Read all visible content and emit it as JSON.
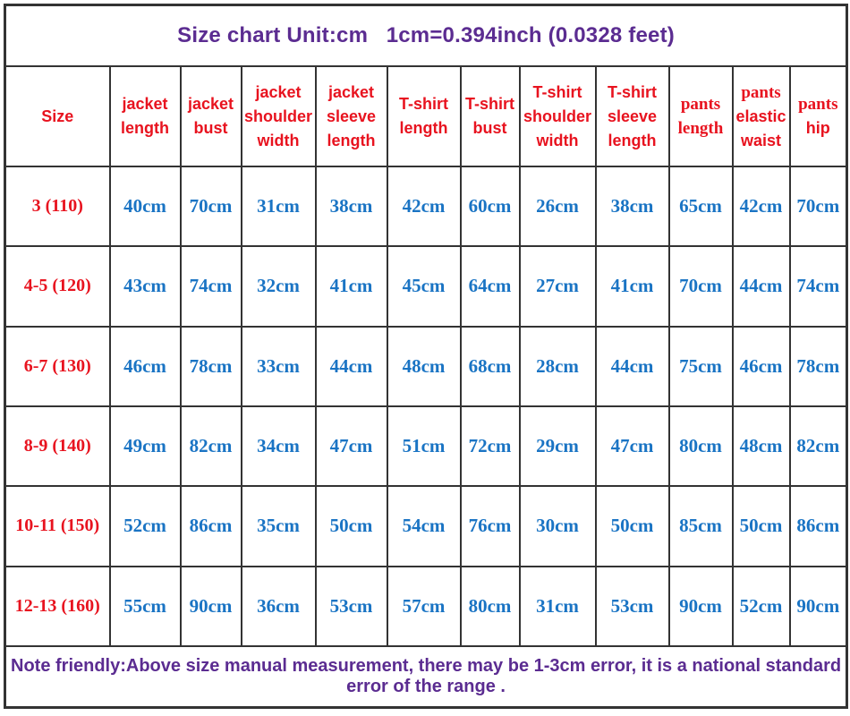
{
  "title": "Size chart Unit:cm   1cm=0.394inch (0.0328 feet)",
  "footer_note": "Note friendly:Above size manual measurement, there may be 1-3cm error, it is a national standard error of the range .",
  "colors": {
    "title_purple": "#5b2c91",
    "header_red": "#e8131f",
    "value_blue": "#1a74c4",
    "grid_border": "#333333",
    "background": "#ffffff"
  },
  "chart_data": {
    "type": "table",
    "title": "Size chart Unit:cm   1cm=0.394inch (0.0328 feet)",
    "unit_conversion": "1cm=0.394inch (0.0328 feet)",
    "column_labels": [
      "Size",
      "jacket length",
      "jacket bust",
      "jacket shoulder width",
      "jacket sleeve length",
      "T-shirt length",
      "T-shirt bust",
      "T-shirt shoulder width",
      "T-shirt sleeve length",
      "pants length",
      "pants elastic waist",
      "pants hip"
    ],
    "columns": [
      {
        "key": "size",
        "lines": [
          {
            "text": "Size",
            "font": "sans"
          }
        ]
      },
      {
        "key": "jacket-length",
        "lines": [
          {
            "text": "jacket",
            "font": "sans"
          },
          {
            "text": "length",
            "font": "sans"
          }
        ]
      },
      {
        "key": "jacket-bust",
        "lines": [
          {
            "text": "jacket",
            "font": "sans"
          },
          {
            "text": "bust",
            "font": "sans"
          }
        ]
      },
      {
        "key": "jacket-shoulder-width",
        "lines": [
          {
            "text": "jacket",
            "font": "sans"
          },
          {
            "text": "shoulder",
            "font": "sans"
          },
          {
            "text": "width",
            "font": "sans"
          }
        ]
      },
      {
        "key": "jacket-sleeve-length",
        "lines": [
          {
            "text": "jacket",
            "font": "sans"
          },
          {
            "text": "sleeve",
            "font": "sans"
          },
          {
            "text": "length",
            "font": "sans"
          }
        ]
      },
      {
        "key": "tshirt-length",
        "lines": [
          {
            "text": "T-shirt",
            "font": "sans"
          },
          {
            "text": "length",
            "font": "sans"
          }
        ]
      },
      {
        "key": "tshirt-bust",
        "lines": [
          {
            "text": "T-shirt",
            "font": "sans"
          },
          {
            "text": "bust",
            "font": "sans"
          }
        ]
      },
      {
        "key": "tshirt-shoulder-width",
        "lines": [
          {
            "text": "T-shirt",
            "font": "sans"
          },
          {
            "text": "shoulder",
            "font": "sans"
          },
          {
            "text": "width",
            "font": "sans"
          }
        ]
      },
      {
        "key": "tshirt-sleeve-length",
        "lines": [
          {
            "text": "T-shirt",
            "font": "sans"
          },
          {
            "text": "sleeve",
            "font": "sans"
          },
          {
            "text": "length",
            "font": "sans"
          }
        ]
      },
      {
        "key": "pants-length",
        "lines": [
          {
            "text": "pants",
            "font": "serif"
          },
          {
            "text": "length",
            "font": "serif"
          }
        ]
      },
      {
        "key": "pants-elastic-waist",
        "lines": [
          {
            "text": "pants",
            "font": "serif"
          },
          {
            "text": "elastic",
            "font": "sans"
          },
          {
            "text": "waist",
            "font": "sans"
          }
        ]
      },
      {
        "key": "pants-hip",
        "lines": [
          {
            "text": "pants",
            "font": "serif"
          },
          {
            "text": "hip",
            "font": "sans"
          }
        ]
      }
    ],
    "rows": [
      {
        "size": "3 (110)",
        "values": [
          "40cm",
          "70cm",
          "31cm",
          "38cm",
          "42cm",
          "60cm",
          "26cm",
          "38cm",
          "65cm",
          "42cm",
          "70cm"
        ]
      },
      {
        "size": "4-5 (120)",
        "values": [
          "43cm",
          "74cm",
          "32cm",
          "41cm",
          "45cm",
          "64cm",
          "27cm",
          "41cm",
          "70cm",
          "44cm",
          "74cm"
        ]
      },
      {
        "size": "6-7 (130)",
        "values": [
          "46cm",
          "78cm",
          "33cm",
          "44cm",
          "48cm",
          "68cm",
          "28cm",
          "44cm",
          "75cm",
          "46cm",
          "78cm"
        ]
      },
      {
        "size": "8-9 (140)",
        "values": [
          "49cm",
          "82cm",
          "34cm",
          "47cm",
          "51cm",
          "72cm",
          "29cm",
          "47cm",
          "80cm",
          "48cm",
          "82cm"
        ]
      },
      {
        "size": "10-11 (150)",
        "values": [
          "52cm",
          "86cm",
          "35cm",
          "50cm",
          "54cm",
          "76cm",
          "30cm",
          "50cm",
          "85cm",
          "50cm",
          "86cm"
        ]
      },
      {
        "size": "12-13 (160)",
        "values": [
          "55cm",
          "90cm",
          "36cm",
          "53cm",
          "57cm",
          "80cm",
          "31cm",
          "53cm",
          "90cm",
          "52cm",
          "90cm"
        ]
      }
    ],
    "note": "Note friendly:Above size manual measurement, there may be 1-3cm error, it is a national standard error of the range ."
  }
}
